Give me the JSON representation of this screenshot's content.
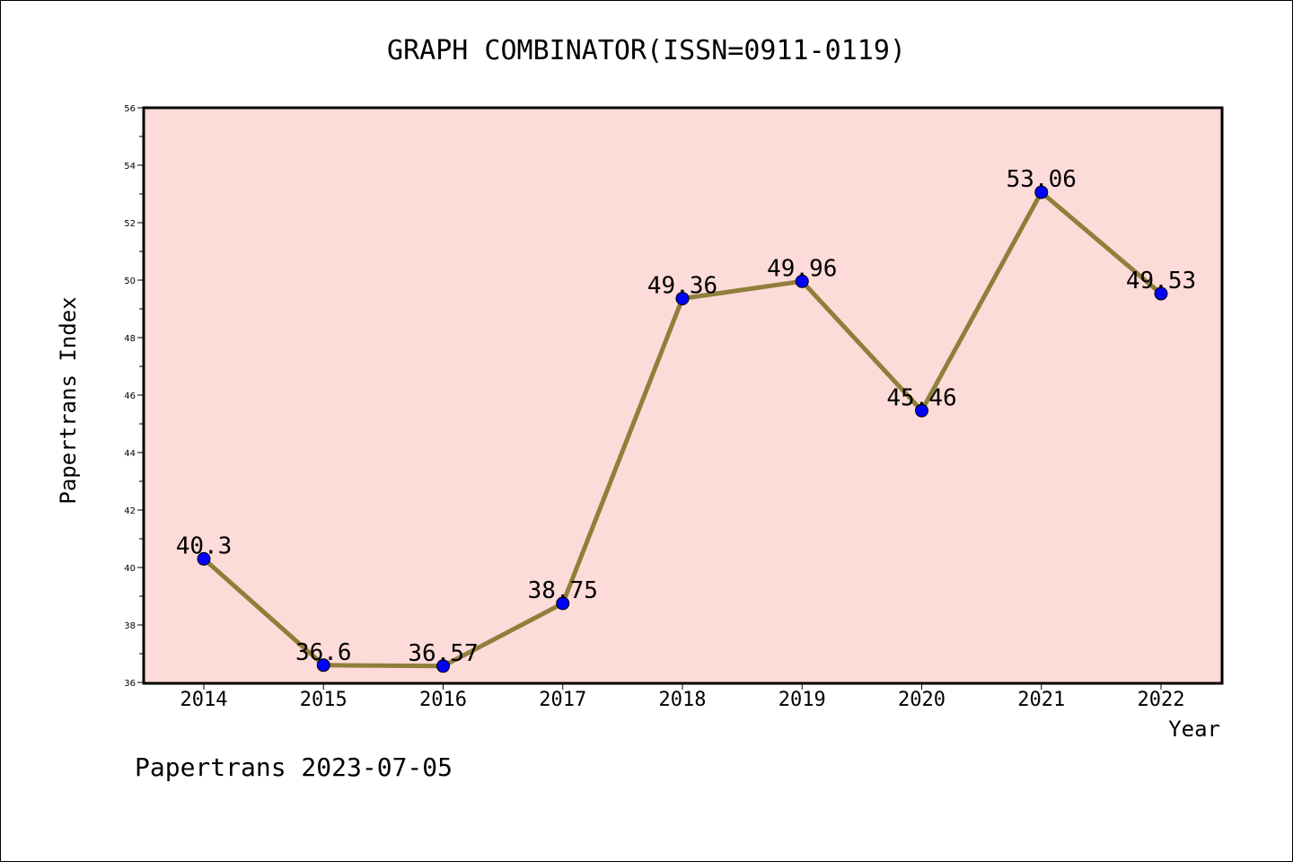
{
  "chart_data": {
    "type": "line",
    "title": "GRAPH COMBINATOR(ISSN=0911-0119)",
    "xlabel": "Year",
    "ylabel": "Papertrans Index",
    "categories": [
      "2014",
      "2015",
      "2016",
      "2017",
      "2018",
      "2019",
      "2020",
      "2021",
      "2022"
    ],
    "series": [
      {
        "values": [
          40.3,
          36.6,
          36.57,
          38.75,
          49.36,
          49.96,
          45.46,
          53.06,
          49.53
        ],
        "data_labels": [
          "40.3",
          "36.6",
          "36.57",
          "38.75",
          "49.36",
          "49.96",
          "45.46",
          "53.06",
          "49.53"
        ]
      }
    ],
    "ylim": [
      36,
      56
    ],
    "yticks": [
      36,
      38,
      40,
      42,
      44,
      46,
      48,
      50,
      52,
      54,
      56
    ],
    "grid": false,
    "legend": "none",
    "colors": {
      "plot_background": "#fddbd9",
      "line": "#8f7f3a",
      "marker": "#0000ff",
      "axis": "#000000"
    }
  },
  "footer": "Papertrans 2023-07-05"
}
